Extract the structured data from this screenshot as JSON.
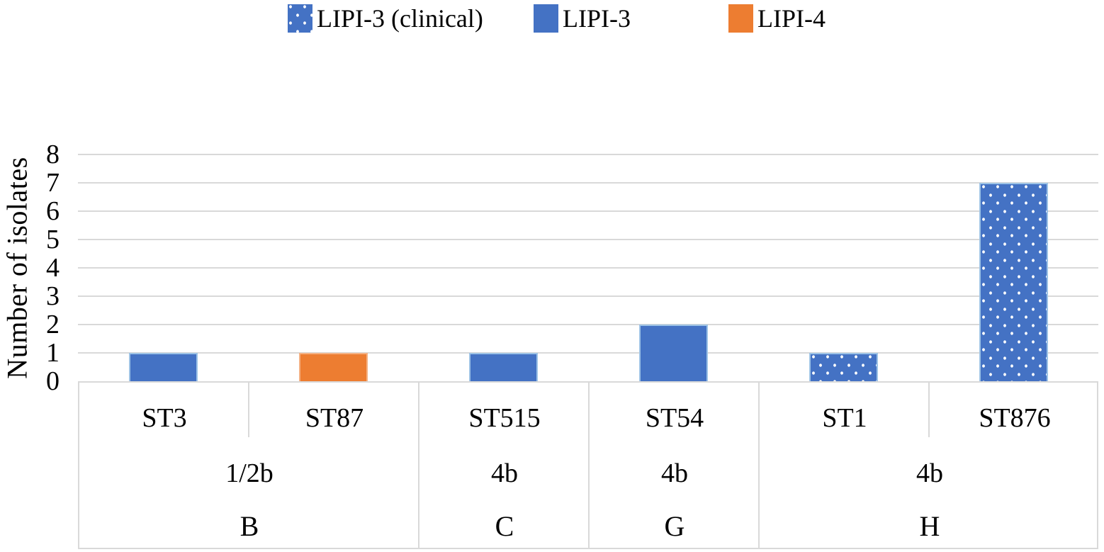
{
  "chart_data": {
    "type": "bar",
    "title": "",
    "ylabel": "Number of isolates",
    "ylim": [
      0,
      8
    ],
    "yticks": [
      0,
      1,
      2,
      3,
      4,
      5,
      6,
      7,
      8
    ],
    "grid": true,
    "legend_position": "top",
    "categories": [
      {
        "st": "ST3",
        "serotype": "1/2b",
        "lineage": "B"
      },
      {
        "st": "ST87",
        "serotype": "1/2b",
        "lineage": "B"
      },
      {
        "st": "ST515",
        "serotype": "4b",
        "lineage": "C"
      },
      {
        "st": "ST54",
        "serotype": "4b",
        "lineage": "G"
      },
      {
        "st": "ST1",
        "serotype": "4b",
        "lineage": "H"
      },
      {
        "st": "ST876",
        "serotype": "4b",
        "lineage": "H"
      }
    ],
    "series": [
      {
        "name": "LIPI-3 (clinical)",
        "color": "#4472C4",
        "border_color": "#9DC3E6",
        "pattern": "dotted-white",
        "values": [
          0,
          0,
          0,
          0,
          1,
          7
        ]
      },
      {
        "name": "LIPI-3",
        "color": "#4472C4",
        "border_color": "#9DC3E6",
        "pattern": "solid",
        "values": [
          1,
          0,
          1,
          2,
          0,
          0
        ]
      },
      {
        "name": "LIPI-4",
        "color": "#ED7D31",
        "border_color": "#F4B183",
        "pattern": "solid",
        "values": [
          0,
          1,
          0,
          0,
          0,
          0
        ]
      }
    ]
  },
  "colors": {
    "grid": "#D9D9D9",
    "axis_table_border": "#D9D9D9",
    "text": "#000000",
    "background": "#FFFFFF"
  }
}
